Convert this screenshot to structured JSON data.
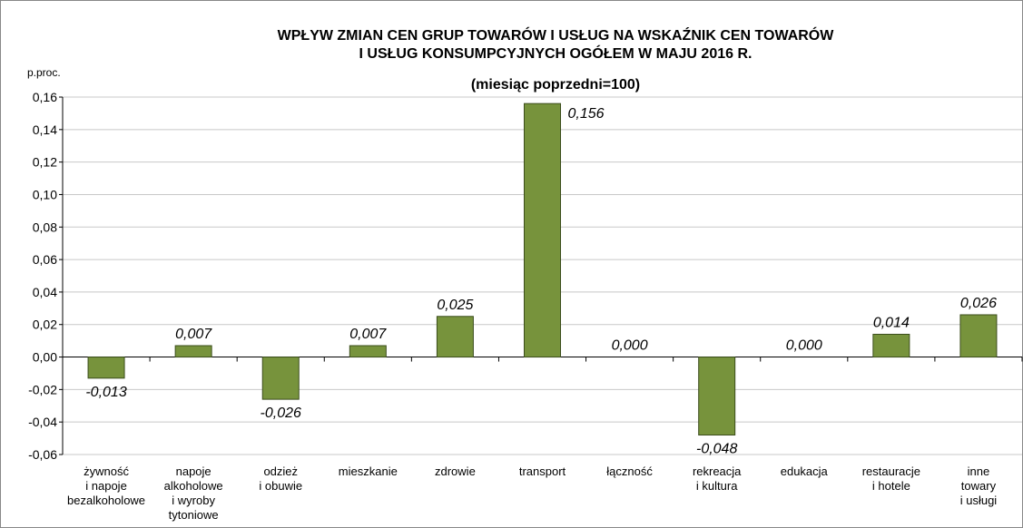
{
  "chart_data": {
    "type": "bar",
    "title": "WPŁYW ZMIAN CEN  GRUP TOWARÓW I USŁUG NA WSKAŹNIK CEN TOWARÓW\nI USŁUG KONSUMPCYJNYCH OGÓŁEM W MAJU 2016 R.",
    "subtitle": "(miesiąc poprzedni=100)",
    "y_label": "p.proc.",
    "categories": [
      "żywność\ni napoje\nbezalkoholowe",
      "napoje\nalkoholowe\ni wyroby\ntytoniowe",
      "odzież\ni obuwie",
      "mieszkanie",
      "zdrowie",
      "transport",
      "łączność",
      "rekreacja\ni kultura",
      "edukacja",
      "restauracje\ni hotele",
      "inne\ntowary\ni usługi"
    ],
    "values": [
      -0.013,
      0.007,
      -0.026,
      0.007,
      0.025,
      0.156,
      0.0,
      -0.048,
      0.0,
      0.014,
      0.026
    ],
    "value_labels": [
      "-0,013",
      "0,007",
      "-0,026",
      "0,007",
      "0,025",
      "0,156",
      "0,000",
      "-0,048",
      "0,000",
      "0,014",
      "0,026"
    ],
    "color": "#77933c",
    "ylim": [
      -0.06,
      0.16
    ],
    "yticks": [
      {
        "value": -0.06,
        "label": "-0,06"
      },
      {
        "value": -0.04,
        "label": "-0,04"
      },
      {
        "value": -0.02,
        "label": "-0,02"
      },
      {
        "value": 0,
        "label": "0,00"
      },
      {
        "value": 0.02,
        "label": "0,02"
      },
      {
        "value": 0.04,
        "label": "0,04"
      },
      {
        "value": 0.06,
        "label": "0,06"
      },
      {
        "value": 0.08,
        "label": "0,08"
      },
      {
        "value": 0.1,
        "label": "0,10"
      },
      {
        "value": 0.12,
        "label": "0,12"
      },
      {
        "value": 0.14,
        "label": "0,14"
      },
      {
        "value": 0.16,
        "label": "0,16"
      }
    ],
    "grid": true
  }
}
